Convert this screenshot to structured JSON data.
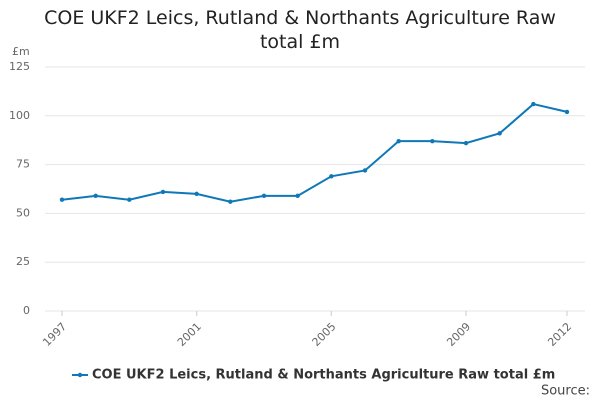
{
  "chart_data": {
    "type": "line",
    "title": "COE UKF2 Leics, Rutland & Northants Agriculture Raw total £m",
    "y_label": "£m",
    "source": "Source:",
    "x": [
      1997,
      1998,
      1999,
      2000,
      2001,
      2002,
      2003,
      2004,
      2005,
      2006,
      2007,
      2008,
      2009,
      2010,
      2011,
      2012
    ],
    "series": [
      {
        "name": "COE UKF2 Leics, Rutland & Northants Agriculture Raw total £m",
        "color": "#0f78b8",
        "values": [
          57,
          59,
          57,
          61,
          60,
          56,
          59,
          59,
          69,
          72,
          87,
          87,
          86,
          91,
          106,
          102
        ]
      }
    ],
    "xlim": [
      1997,
      2012
    ],
    "xticks": [
      1997,
      2001,
      2005,
      2009,
      2012
    ],
    "ylim": [
      0,
      125
    ],
    "yticks": [
      0,
      25,
      50,
      75,
      100,
      125
    ],
    "grid": true
  }
}
